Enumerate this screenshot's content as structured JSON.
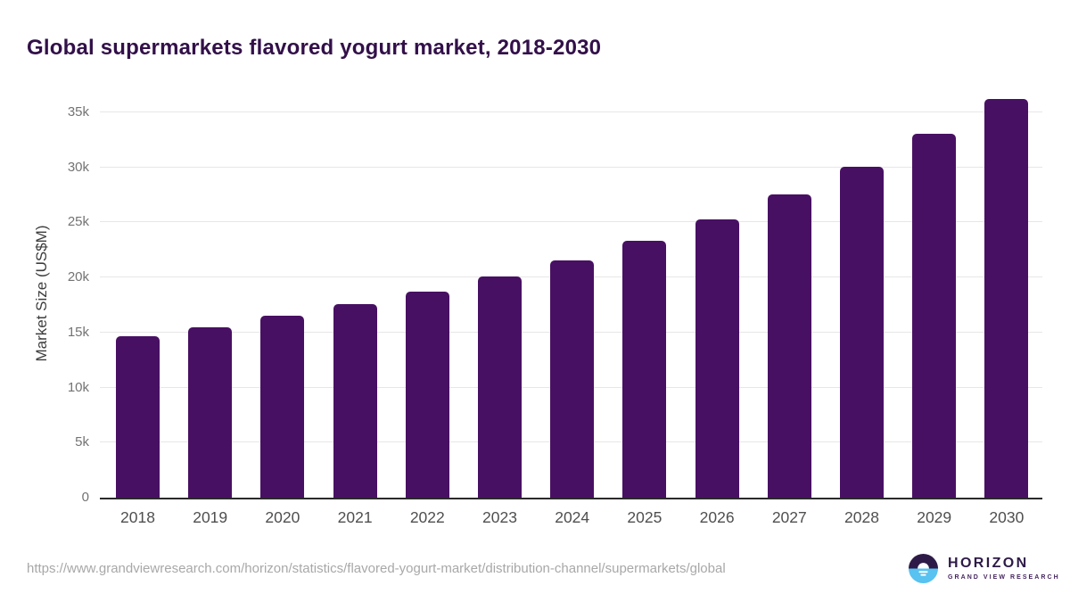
{
  "title": "Global supermarkets flavored yogurt market, 2018-2030",
  "colors": {
    "bar": "#481063",
    "title": "#321049",
    "axis_line": "#2a2a2a",
    "gridline": "#e7e7e7",
    "y_tick_label": "#737373",
    "x_tick_label": "#4f4f4f",
    "y_axis_title": "#3d3d3d",
    "source_url": "#a8a8a8",
    "logo_purple": "#2e1a47",
    "logo_blue": "#58c2f0",
    "logo_text": "#2e1a47",
    "logo_subtext": "#45245e"
  },
  "chart_data": {
    "type": "bar",
    "title": "Global supermarkets flavored yogurt market, 2018-2030",
    "categories": [
      "2018",
      "2019",
      "2020",
      "2021",
      "2022",
      "2023",
      "2024",
      "2025",
      "2026",
      "2027",
      "2028",
      "2029",
      "2030"
    ],
    "values": [
      14700,
      15500,
      16500,
      17550,
      18700,
      20100,
      21550,
      23350,
      25300,
      27550,
      30050,
      33050,
      36200
    ],
    "xlabel": "",
    "ylabel": "Market Size (US$M)",
    "ylim": [
      0,
      37100
    ],
    "yticks": [
      {
        "value": 0,
        "label": "0"
      },
      {
        "value": 5000,
        "label": "5k"
      },
      {
        "value": 10000,
        "label": "10k"
      },
      {
        "value": 15000,
        "label": "15k"
      },
      {
        "value": 20000,
        "label": "20k"
      },
      {
        "value": 25000,
        "label": "25k"
      },
      {
        "value": 30000,
        "label": "30k"
      },
      {
        "value": 35000,
        "label": "35k"
      }
    ],
    "grid": "horizontal-light",
    "legend": "none",
    "bar_color": "#481063"
  },
  "footer": {
    "source_url": "https://www.grandviewresearch.com/horizon/statistics/flavored-yogurt-market/distribution-channel/supermarkets/global",
    "logo": {
      "name": "HORIZON",
      "subtitle": "GRAND VIEW RESEARCH"
    }
  }
}
